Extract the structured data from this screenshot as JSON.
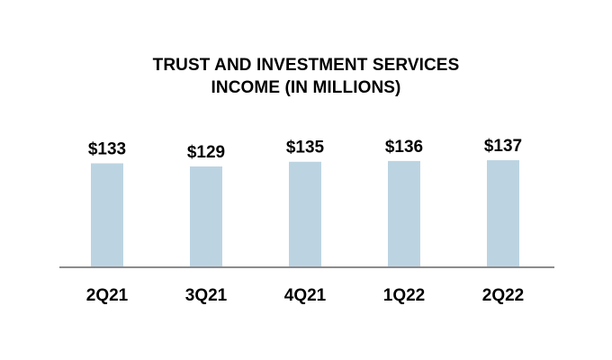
{
  "chart_data": {
    "type": "bar",
    "title_lines": [
      "TRUST AND INVESTMENT SERVICES",
      "INCOME (IN MILLIONS)"
    ],
    "categories": [
      "2Q21",
      "3Q21",
      "4Q21",
      "1Q22",
      "2Q22"
    ],
    "values": [
      133,
      129,
      135,
      136,
      137
    ],
    "value_labels": [
      "$133",
      "$129",
      "$135",
      "$136",
      "$137"
    ],
    "xlabel": "",
    "ylabel": "",
    "ylim": [
      0,
      137
    ],
    "grid": false,
    "legend": "none",
    "colors": {
      "bar": "#bcd4e2",
      "axis": "#8c8c8c",
      "text": "#000000"
    }
  }
}
